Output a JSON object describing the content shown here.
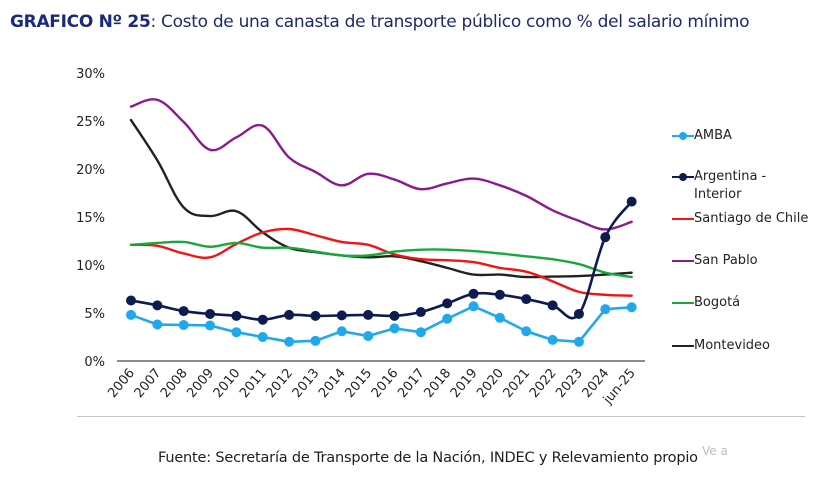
{
  "header": {
    "title_bold": "GRAFICO Nº 25",
    "title_rest": ": Costo de una canasta de transporte público como % del salario mínimo"
  },
  "footer": {
    "source": "Fuente: Secretaría de Transporte de la Nación, INDEC y Relevamiento propio",
    "watermark": "Ve a"
  },
  "chart_data": {
    "type": "line",
    "title": "Costo de una canasta de transporte público como % del salario mínimo",
    "xlabel": "",
    "ylabel": "",
    "ylim": [
      0,
      30
    ],
    "yticks": [
      0,
      5,
      10,
      15,
      20,
      25,
      30
    ],
    "ytick_labels": [
      "0%",
      "5%",
      "10%",
      "15%",
      "20%",
      "25%",
      "30%"
    ],
    "grid": false,
    "legend_position": "right",
    "categories": [
      "2006",
      "2007",
      "2008",
      "2009",
      "2010",
      "2011",
      "2012",
      "2013",
      "2014",
      "2015",
      "2016",
      "2017",
      "2018",
      "2019",
      "2020",
      "2021",
      "2022",
      "2023",
      "2024",
      "jun-25"
    ],
    "series": [
      {
        "name": "AMBA",
        "color": "#1fa9ea",
        "markers": true,
        "smooth": false,
        "values": [
          4.8,
          3.8,
          3.75,
          3.7,
          3.0,
          2.5,
          2.0,
          2.1,
          3.1,
          2.6,
          3.4,
          3.0,
          4.4,
          5.7,
          4.5,
          3.1,
          2.2,
          2.0,
          5.4,
          5.6
        ]
      },
      {
        "name": "Argentina - Interior",
        "legend_lines": [
          "Argentina -",
          "Interior"
        ],
        "color": "#0d1b4f",
        "markers": true,
        "smooth": false,
        "values": [
          6.3,
          5.8,
          5.2,
          4.9,
          4.7,
          4.3,
          4.8,
          4.7,
          4.75,
          4.8,
          4.7,
          5.1,
          6.0,
          7.0,
          6.9,
          6.45,
          5.8,
          4.9,
          12.9,
          16.6
        ]
      },
      {
        "name": "Santiago de Chile",
        "color": "#f01414",
        "markers": false,
        "smooth": true,
        "values": [
          12.1,
          12.0,
          11.2,
          10.8,
          12.2,
          13.4,
          13.75,
          13.1,
          12.4,
          12.1,
          11.1,
          10.6,
          10.5,
          10.3,
          9.7,
          9.3,
          8.3,
          7.2,
          6.9,
          6.8
        ]
      },
      {
        "name": "San Pablo",
        "color": "#8b1a8e",
        "markers": false,
        "smooth": true,
        "values": [
          26.5,
          27.2,
          24.9,
          22.0,
          23.3,
          24.5,
          21.2,
          19.7,
          18.3,
          19.5,
          18.9,
          17.9,
          18.5,
          19.0,
          18.3,
          17.2,
          15.7,
          14.6,
          13.7,
          14.5
        ]
      },
      {
        "name": "Bogotá",
        "color": "#19a83c",
        "markers": false,
        "smooth": true,
        "values": [
          12.1,
          12.3,
          12.4,
          11.9,
          12.3,
          11.8,
          11.8,
          11.4,
          11.0,
          11.0,
          11.4,
          11.6,
          11.6,
          11.45,
          11.2,
          10.9,
          10.6,
          10.1,
          9.2,
          8.75
        ]
      },
      {
        "name": "Montevideo",
        "color": "#222222",
        "markers": false,
        "smooth": true,
        "values": [
          25.1,
          20.9,
          16.0,
          15.1,
          15.6,
          13.4,
          11.8,
          11.35,
          11.0,
          10.8,
          10.9,
          10.4,
          9.7,
          9.0,
          9.0,
          8.75,
          8.8,
          8.85,
          9.0,
          9.2
        ]
      }
    ]
  }
}
